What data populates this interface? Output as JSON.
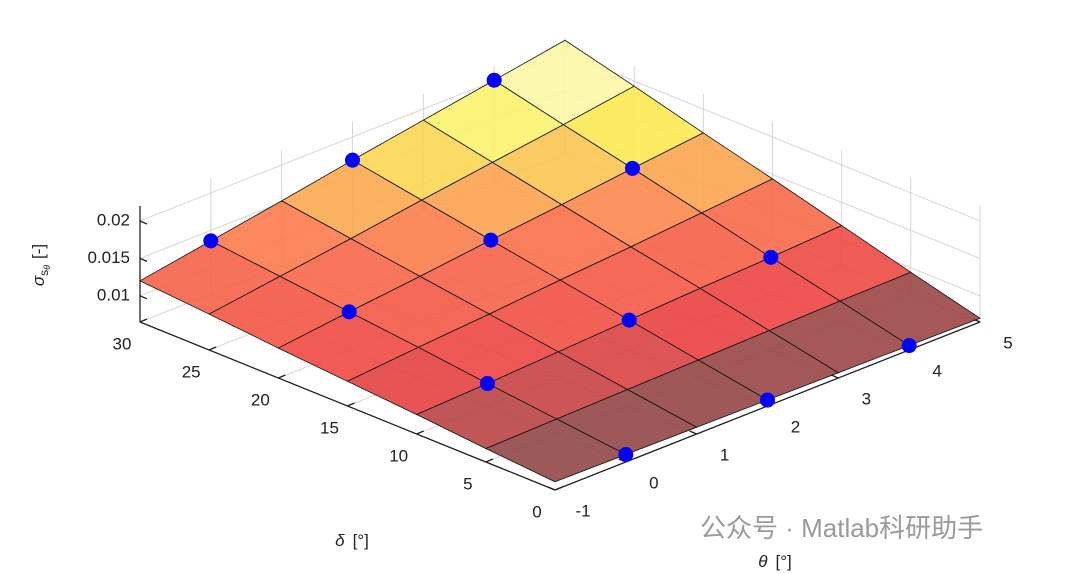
{
  "chart_data": {
    "type": "surface3d",
    "xlabel": {
      "symbol": "θ",
      "unit": "[°]"
    },
    "ylabel": {
      "symbol": "δ",
      "unit": "[°]"
    },
    "zlabel": {
      "symbol": "σ",
      "sub": "s",
      "subsub": "θ",
      "unit": "[-]"
    },
    "xlim": [
      -1,
      5
    ],
    "ylim": [
      0,
      30
    ],
    "zlim": [
      0.0065,
      0.022
    ],
    "xticks": [
      -1,
      0,
      1,
      2,
      3,
      4,
      5
    ],
    "yticks": [
      0,
      5,
      10,
      15,
      20,
      25,
      30
    ],
    "zticks": [
      0.01,
      0.015,
      0.02
    ],
    "grid": true,
    "surface": {
      "x": [
        -1,
        0,
        1,
        2,
        3,
        4,
        5
      ],
      "y": [
        0,
        5,
        10,
        15,
        20,
        25,
        30
      ],
      "z": [
        [
          0.0076,
          0.0075,
          0.0074,
          0.0073,
          0.0072,
          0.0071,
          0.007
        ],
        [
          0.0083,
          0.0085,
          0.0087,
          0.0089,
          0.0091,
          0.0093,
          0.0094
        ],
        [
          0.0091,
          0.0095,
          0.01,
          0.0105,
          0.011,
          0.0114,
          0.0119
        ],
        [
          0.0098,
          0.0106,
          0.0113,
          0.0121,
          0.0128,
          0.0136,
          0.0144
        ],
        [
          0.0105,
          0.0116,
          0.0126,
          0.0137,
          0.0147,
          0.0158,
          0.0168
        ],
        [
          0.0113,
          0.0126,
          0.0139,
          0.0153,
          0.0166,
          0.0179,
          0.0193
        ],
        [
          0.012,
          0.0136,
          0.0152,
          0.0169,
          0.0185,
          0.0201,
          0.0217
        ]
      ]
    },
    "points": {
      "color": "#0000ff",
      "x": [
        0,
        2,
        4,
        0,
        2,
        4,
        0,
        2,
        4,
        0,
        2,
        4
      ],
      "y": [
        0,
        0,
        0,
        10,
        10,
        10,
        20,
        20,
        20,
        30,
        30,
        30
      ],
      "z": [
        0.0075,
        0.0073,
        0.0071,
        0.0095,
        0.0105,
        0.0114,
        0.0116,
        0.0137,
        0.0158,
        0.0136,
        0.0169,
        0.0201
      ]
    }
  },
  "watermark": "公众号 · Matlab科研助手"
}
